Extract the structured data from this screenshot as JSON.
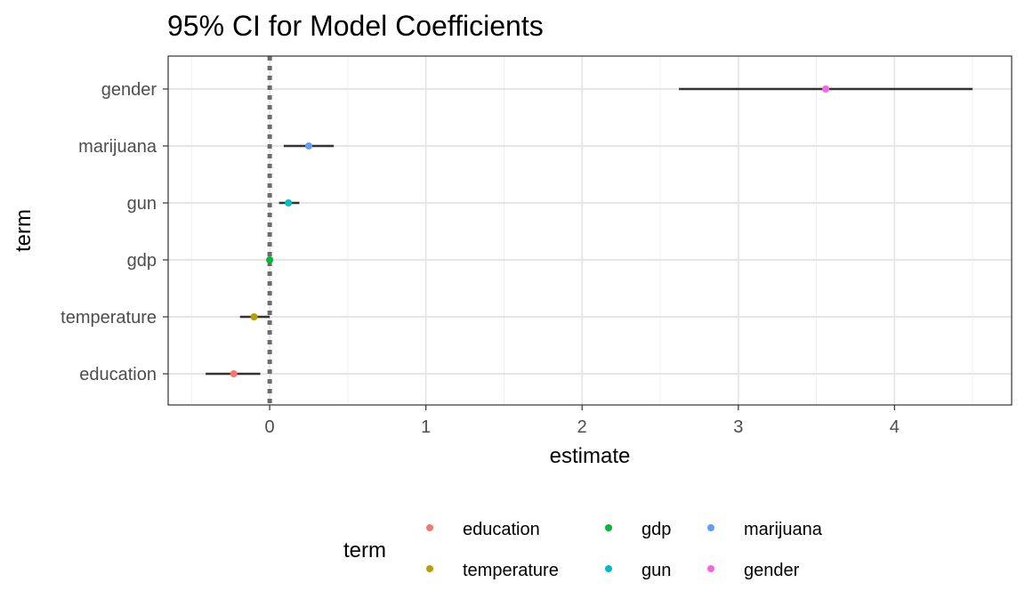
{
  "chart_data": {
    "type": "forest",
    "title": "95% CI for Model Coefficients",
    "xlabel": "estimate",
    "ylabel": "term",
    "xlim": [
      -0.65,
      4.75
    ],
    "x_ticks": [
      "0",
      "1",
      "2",
      "3",
      "4"
    ],
    "x_tick_values": [
      0,
      1,
      2,
      3,
      4
    ],
    "reference_line": 0,
    "grid": true,
    "categories": [
      "gender",
      "marijuana",
      "gun",
      "gdp",
      "temperature",
      "education"
    ],
    "estimates": [
      {
        "term": "gender",
        "estimate": 3.56,
        "low": 2.62,
        "high": 4.5,
        "color": "#f564e3"
      },
      {
        "term": "marijuana",
        "estimate": 0.25,
        "low": 0.09,
        "high": 0.41,
        "color": "#619cff"
      },
      {
        "term": "gun",
        "estimate": 0.12,
        "low": 0.06,
        "high": 0.19,
        "color": "#00bfc4"
      },
      {
        "term": "gdp",
        "estimate": 0.0,
        "low": -0.005,
        "high": 0.005,
        "color": "#00ba38"
      },
      {
        "term": "temperature",
        "estimate": -0.1,
        "low": -0.19,
        "high": 0.0,
        "color": "#b79f00"
      },
      {
        "term": "education",
        "estimate": -0.23,
        "low": -0.41,
        "high": -0.06,
        "color": "#f8766d"
      }
    ],
    "legend": {
      "title": "term",
      "position": "bottom",
      "columns": [
        [
          {
            "label": "education",
            "color": "#f8766d"
          },
          {
            "label": "temperature",
            "color": "#b79f00"
          }
        ],
        [
          {
            "label": "gdp",
            "color": "#00ba38"
          },
          {
            "label": "gun",
            "color": "#00bfc4"
          }
        ],
        [
          {
            "label": "marijuana",
            "color": "#619cff"
          },
          {
            "label": "gender",
            "color": "#f564e3"
          }
        ]
      ]
    }
  }
}
